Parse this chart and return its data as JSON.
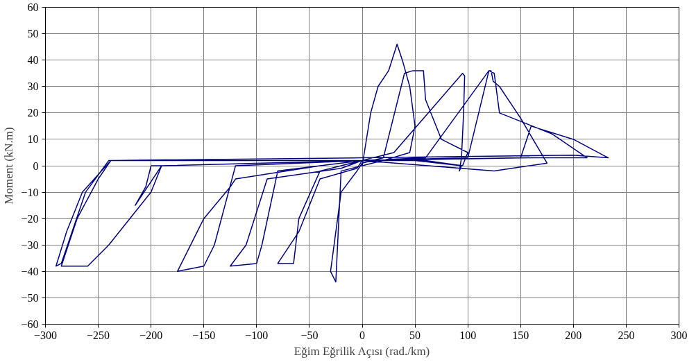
{
  "chart_data": {
    "type": "line",
    "xlabel": "Eğim Eğrilik Açısı (rad./km)",
    "ylabel": "Moment (kN.m)",
    "xlim": [
      -300,
      300
    ],
    "xticks": [
      -300,
      -250,
      -200,
      -150,
      -100,
      -50,
      0,
      50,
      100,
      150,
      200,
      250,
      300
    ],
    "ylim": [
      -60,
      60
    ],
    "yticks": [
      -60,
      -50,
      -40,
      -30,
      -20,
      -10,
      0,
      10,
      20,
      30,
      40,
      50,
      60
    ],
    "grid": true,
    "marker": "none",
    "line_style": "solid",
    "series": [
      {
        "color": "#000080",
        "x": [
          0,
          8,
          15,
          25,
          33,
          38,
          45,
          50,
          45,
          20,
          0,
          -20,
          -25,
          -30,
          -20,
          -5,
          0,
          20,
          40,
          48,
          58,
          60,
          75,
          100,
          95,
          60,
          0,
          -40,
          -60,
          -65,
          -80,
          -60,
          -40,
          -5,
          0,
          30,
          95,
          97,
          96,
          94,
          92,
          94,
          50,
          0,
          -80,
          -95,
          -100,
          -125,
          -110,
          -90,
          -20,
          0,
          60,
          120,
          122,
          124,
          130,
          150,
          175,
          125,
          0,
          -120,
          -140,
          -150,
          -175,
          -150,
          -125,
          -120,
          -40,
          0,
          100,
          120,
          125,
          130,
          180,
          213,
          160,
          0,
          -190,
          -215,
          -205,
          -200,
          -190,
          -200,
          -240,
          -260,
          -285,
          -270,
          -250,
          -238,
          0,
          150,
          160,
          200,
          233,
          200,
          0,
          -238,
          -265,
          -280,
          -290,
          -285,
          -262,
          -240,
          0
        ],
        "values": [
          0,
          20,
          30,
          36,
          46,
          40,
          30,
          15,
          5,
          2,
          0,
          -2,
          -44,
          -40,
          -10,
          -2,
          1,
          3,
          35,
          36,
          36,
          25,
          10,
          5,
          0,
          2,
          2,
          -2,
          -20,
          -37,
          -37,
          -25,
          -5,
          -1,
          2,
          5,
          35,
          34,
          20,
          3,
          -2,
          0,
          2,
          2,
          -2,
          -30,
          -37,
          -38,
          -30,
          -5,
          -1,
          2,
          3,
          36,
          36,
          32,
          30,
          18,
          1,
          -2,
          2,
          0,
          -30,
          -38,
          -40,
          -20,
          -8,
          -5,
          0,
          2,
          3,
          36,
          35,
          20,
          12,
          3,
          3,
          2,
          0,
          -15,
          -8,
          0,
          0,
          -10,
          -30,
          -38,
          -38,
          -20,
          -5,
          2,
          2,
          3,
          15,
          10,
          3,
          4,
          3,
          2,
          -10,
          -25,
          -38,
          -37,
          -10,
          2,
          2
        ]
      }
    ]
  }
}
